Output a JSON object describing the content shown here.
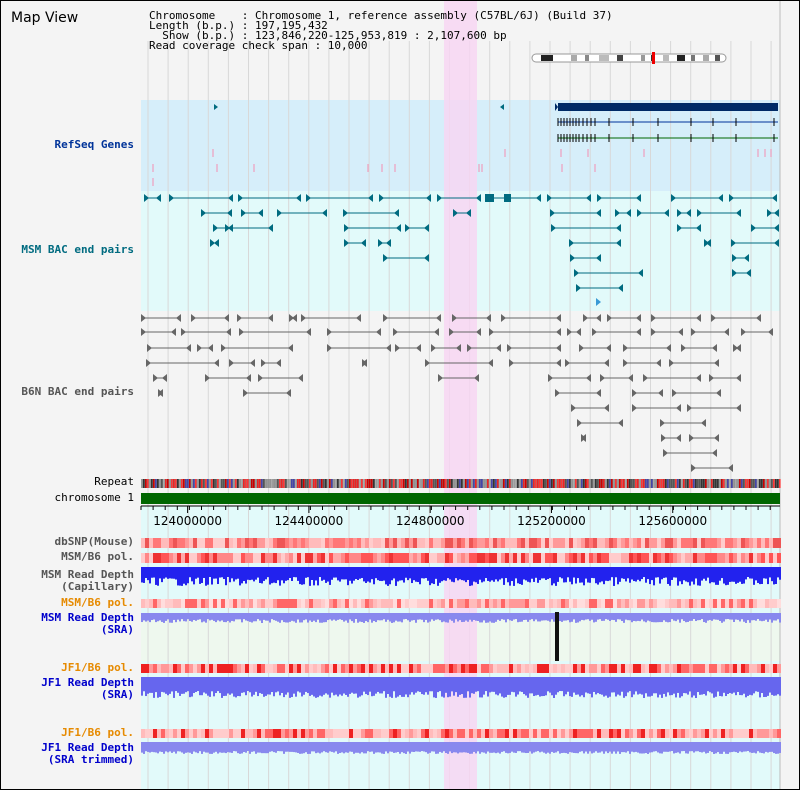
{
  "title": "Map View",
  "info": {
    "line1": "Chromosome    : Chromosome 1, reference assembly (C57BL/6J) (Build 37)",
    "line2": "Length (b.p.) : 197,195,432",
    "line3": "  Show (b.p.) : 123,846,220-125,953,819 : 2,107,600 bp",
    "line4": "Read coverage check span : 10,000"
  },
  "axis": {
    "ticks": [
      "124000000",
      "124400000",
      "124800000",
      "125200000",
      "125600000"
    ],
    "tick_values": [
      124000000,
      124400000,
      124800000,
      125200000,
      125600000
    ],
    "range": [
      123846220,
      125953819
    ]
  },
  "tracks": {
    "refseq": "RefSeq Genes",
    "msm_bac": "MSM BAC end pairs",
    "b6n_bac": "B6N BAC end pairs",
    "repeat": "Repeat",
    "chromosome": "chromosome 1",
    "dbsnp": "dbSNP(Mouse)",
    "msm_b6_pol": "MSM/B6 pol.",
    "msm_read_depth_cap_1": "MSM Read Depth",
    "msm_read_depth_cap_2": "(Capillary)",
    "msm_b6_pol_sra": "MSM/B6 pol.",
    "msm_read_depth_sra_1": "MSM Read Depth",
    "msm_read_depth_sra_2": "(SRA)",
    "jf1_b6_pol": "JF1/B6 pol.",
    "jf1_read_depth_1": "JF1 Read Depth",
    "jf1_read_depth_2": "(SRA)",
    "jf1_b6_pol_trim": "JF1/B6 pol.",
    "jf1_read_depth_trim_1": "JF1 Read Depth",
    "jf1_read_depth_trim_2": "(SRA trimmed)"
  },
  "colors": {
    "refseq_label": "#003399",
    "msm_label": "#006b80",
    "b6n_label": "#555555",
    "pol_orange": "#e68a00",
    "depth_blue": "#0000cc",
    "highlight": "#f7d6f2",
    "chromosome_green": "#006600"
  }
}
